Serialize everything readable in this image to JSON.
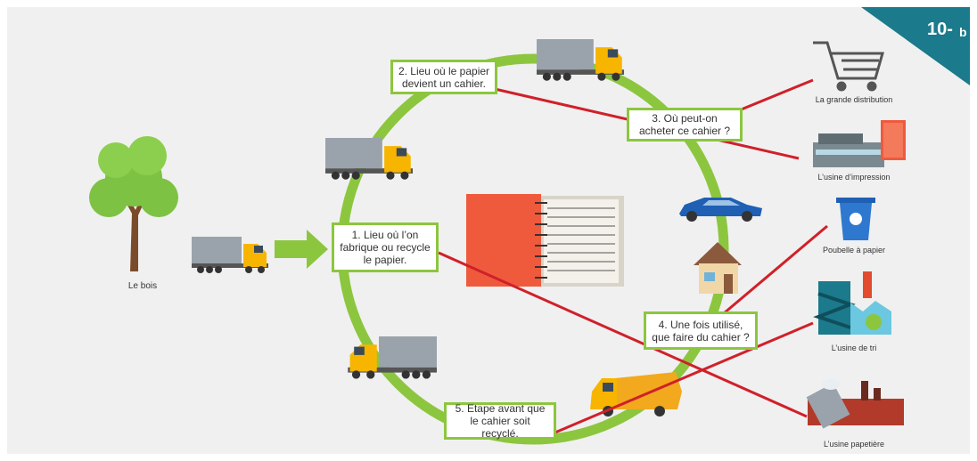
{
  "badge": {
    "number": "10-",
    "letter": "b"
  },
  "source": {
    "label": "Le bois"
  },
  "questions": [
    {
      "text": "1. Lieu où l’on fabrique ou recycle le papier."
    },
    {
      "text": "2. Lieu où le papier devient un cahier."
    },
    {
      "text": "3. Où peut-on acheter ce cahier ?"
    },
    {
      "text": "4. Une fois utilisé, que faire du cahier ?"
    },
    {
      "text": "5. Etape avant que le cahier soit recyclé."
    }
  ],
  "destinations": [
    {
      "label": "La grande distribution"
    },
    {
      "label": "L’usine d’impression"
    },
    {
      "label": "Poubelle à papier"
    },
    {
      "label": "L’usine de tri"
    },
    {
      "label": "L’usine papetière"
    }
  ]
}
